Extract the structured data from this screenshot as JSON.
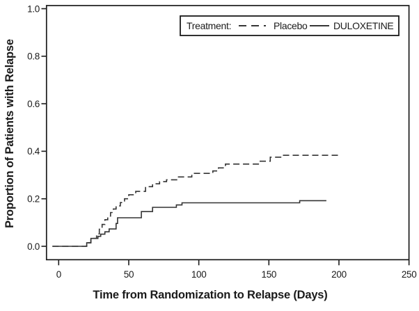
{
  "chart": {
    "background_color": "#ffffff",
    "line_color": "#333333",
    "axis_color": "#1a1a1a"
  },
  "legend": {
    "title": "Treatment:",
    "items": [
      {
        "label": "Placebo",
        "line_style": "dashed"
      },
      {
        "label": "DULOXETINE",
        "line_style": "solid"
      }
    ]
  },
  "chart_data": {
    "type": "line",
    "subtype": "kaplan-meier-step",
    "title": "",
    "xlabel": "Time from Randomization to Relapse (Days)",
    "ylabel": "Proportion of Patients with Relapse",
    "xlim": [
      0,
      250
    ],
    "ylim": [
      0.0,
      1.0
    ],
    "xticks": [
      0,
      50,
      100,
      150,
      200,
      250
    ],
    "xtick_labels": [
      "0",
      "50",
      "100",
      "150",
      "200",
      "250"
    ],
    "yticks": [
      0.0,
      0.2,
      0.4,
      0.6,
      0.8,
      1.0
    ],
    "ytick_labels": [
      "0.0",
      "0.2",
      "0.4",
      "0.6",
      "0.8",
      "1.0"
    ],
    "grid": false,
    "legend_position": "top-right",
    "series": [
      {
        "name": "Placebo",
        "line": "dashed",
        "points": [
          [
            0,
            0
          ],
          [
            20,
            0.015
          ],
          [
            23,
            0.033
          ],
          [
            27,
            0.052
          ],
          [
            29,
            0.072
          ],
          [
            31,
            0.092
          ],
          [
            33,
            0.112
          ],
          [
            35,
            0.127
          ],
          [
            37,
            0.142
          ],
          [
            39,
            0.157
          ],
          [
            41,
            0.17
          ],
          [
            44,
            0.184
          ],
          [
            47,
            0.2
          ],
          [
            50,
            0.217
          ],
          [
            55,
            0.231
          ],
          [
            62,
            0.251
          ],
          [
            67,
            0.263
          ],
          [
            72,
            0.272
          ],
          [
            77,
            0.28
          ],
          [
            85,
            0.292
          ],
          [
            95,
            0.307
          ],
          [
            110,
            0.317
          ],
          [
            114,
            0.33
          ],
          [
            119,
            0.346
          ],
          [
            143,
            0.358
          ],
          [
            151,
            0.375
          ],
          [
            159,
            0.383
          ],
          [
            201,
            0.383
          ]
        ]
      },
      {
        "name": "DULOXETINE",
        "line": "solid",
        "points": [
          [
            0,
            0
          ],
          [
            20,
            0.015
          ],
          [
            23,
            0.033
          ],
          [
            28,
            0.042
          ],
          [
            30,
            0.051
          ],
          [
            33,
            0.061
          ],
          [
            36,
            0.073
          ],
          [
            41,
            0.096
          ],
          [
            42,
            0.12
          ],
          [
            59,
            0.146
          ],
          [
            67,
            0.164
          ],
          [
            84,
            0.174
          ],
          [
            88,
            0.183
          ],
          [
            172,
            0.192
          ],
          [
            191,
            0.192
          ]
        ]
      }
    ]
  }
}
